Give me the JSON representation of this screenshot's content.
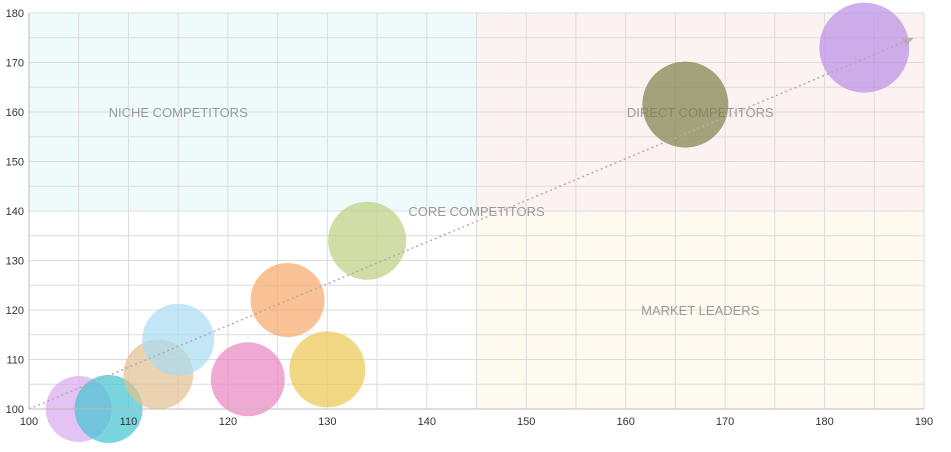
{
  "chart_data": {
    "type": "bubble",
    "title": "",
    "xlabel": "",
    "ylabel": "",
    "xlim": [
      100,
      190
    ],
    "ylim": [
      100,
      180
    ],
    "x_ticks": [
      100,
      110,
      120,
      130,
      140,
      150,
      160,
      170,
      180,
      190
    ],
    "y_ticks": [
      100,
      110,
      120,
      130,
      140,
      150,
      160,
      170,
      180
    ],
    "grid": true,
    "grid_step": 5,
    "quadrants": [
      {
        "label": "NICHE COMPETITORS",
        "x": [
          100,
          145
        ],
        "y": [
          140,
          180
        ],
        "color": "#effbfb",
        "label_at": [
          115,
          160
        ]
      },
      {
        "label": "DIRECT COMPETITORS",
        "x": [
          145,
          190
        ],
        "y": [
          140,
          180
        ],
        "color": "#fdf2f2",
        "label_at": [
          167.5,
          160
        ]
      },
      {
        "label": "CORE COMPETITORS",
        "x": [
          100,
          145
        ],
        "y": [
          100,
          140
        ],
        "color": "#ffffff",
        "label_at": [
          145,
          140
        ]
      },
      {
        "label": "MARKET LEADERS",
        "x": [
          145,
          190
        ],
        "y": [
          100,
          140
        ],
        "color": "#fefaf0",
        "label_at": [
          167.5,
          120
        ]
      }
    ],
    "trend_line": {
      "from": [
        100,
        100
      ],
      "to": [
        189,
        175
      ],
      "style": "dotted",
      "arrow": true,
      "color": "#b8a8b0"
    },
    "points": [
      {
        "x": 105,
        "y": 100,
        "r": 33,
        "color": "#d8a8f0"
      },
      {
        "x": 108,
        "y": 100,
        "r": 34,
        "color": "#40c4d0"
      },
      {
        "x": 113,
        "y": 107,
        "r": 35,
        "color": "#e2c090"
      },
      {
        "x": 115,
        "y": 114,
        "r": 36,
        "color": "#a8dcf2"
      },
      {
        "x": 122,
        "y": 106,
        "r": 37,
        "color": "#e884c0"
      },
      {
        "x": 126,
        "y": 122,
        "r": 37,
        "color": "#f7a868"
      },
      {
        "x": 130,
        "y": 108,
        "r": 38,
        "color": "#ecc850"
      },
      {
        "x": 134,
        "y": 134,
        "r": 39,
        "color": "#bccf80"
      },
      {
        "x": 166,
        "y": 161.5,
        "r": 43,
        "color": "#7d8048"
      },
      {
        "x": 184,
        "y": 173,
        "r": 45,
        "color": "#b88ee6"
      }
    ]
  }
}
